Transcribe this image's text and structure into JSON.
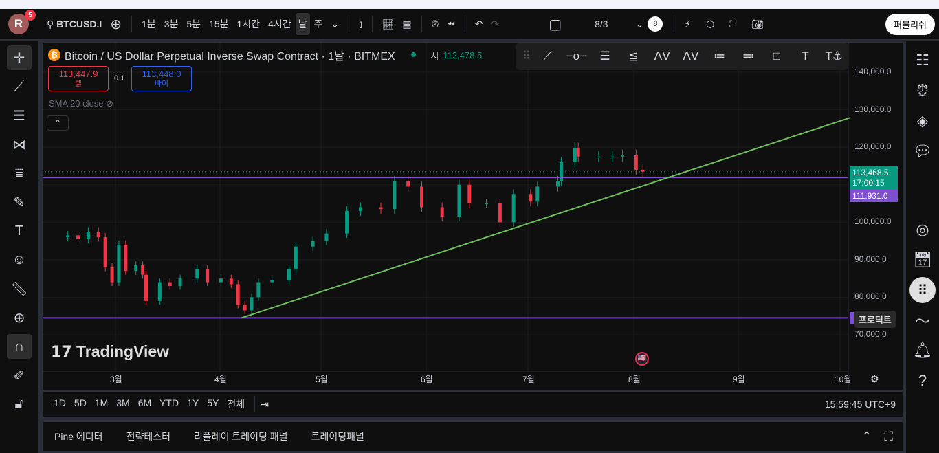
{
  "topbar": {
    "avatar": "R",
    "notifications": "5",
    "symbol": "BTCUSD.I",
    "intervals": [
      "1분",
      "3분",
      "5분",
      "15분",
      "1시간",
      "4시간",
      "날",
      "주"
    ],
    "active_interval": "날",
    "layout": "8/3",
    "layout_count": "8",
    "publish": "퍼블리쉬"
  },
  "legend": {
    "title": "Bitcoin / US Dollar Perpetual Inverse Swap Contract · 1날 · BITMEX",
    "open_label": "시",
    "open_value": "112,478.5",
    "sell_price": "113,447.9",
    "sell_label": "셀",
    "spread": "0.1",
    "buy_price": "113,448.0",
    "buy_label": "바이",
    "indicator": "SMA 20 close"
  },
  "price_axis": {
    "ticks": [
      "140,000.0",
      "130,000.0",
      "120,000.0",
      "100,000.0",
      "90,000.0",
      "80,000.0",
      "70,000.0"
    ],
    "last_price": "113,468.5",
    "countdown": "17:00:15",
    "line_price": "111,931.0",
    "tooltip": "프로덕트"
  },
  "time_axis": {
    "ticks": [
      "3월",
      "4월",
      "5월",
      "6월",
      "7월",
      "8월",
      "9월",
      "10월"
    ]
  },
  "watermark": "TradingView",
  "ranges": [
    "1D",
    "5D",
    "1M",
    "3M",
    "6M",
    "YTD",
    "1Y",
    "5Y",
    "전체"
  ],
  "clock": "15:59:45 UTC+9",
  "bottom_tabs": [
    "Pine 에디터",
    "전략테스터",
    "리플레이 트레이딩 패널",
    "트레이딩패널"
  ],
  "colors": {
    "up": "#089981",
    "down": "#f23645",
    "hline": "#7e4fd0",
    "trend": "#6fbf5a",
    "last": "#089981"
  },
  "chart_data": {
    "type": "candlestick",
    "ylim": [
      60000,
      145000
    ],
    "closes": [
      [
        "02-15",
        96500
      ],
      [
        "02-18",
        95500
      ],
      [
        "02-21",
        97500
      ],
      [
        "02-24",
        96000
      ],
      [
        "02-26",
        88000
      ],
      [
        "02-28",
        84000
      ],
      [
        "03-02",
        94000
      ],
      [
        "03-04",
        87000
      ],
      [
        "03-07",
        88500
      ],
      [
        "03-09",
        86000
      ],
      [
        "03-10",
        79000
      ],
      [
        "03-14",
        84000
      ],
      [
        "03-17",
        83000
      ],
      [
        "03-20",
        85000
      ],
      [
        "03-25",
        87500
      ],
      [
        "03-28",
        84000
      ],
      [
        "04-01",
        85000
      ],
      [
        "04-04",
        83500
      ],
      [
        "04-06",
        78000
      ],
      [
        "04-08",
        76500
      ],
      [
        "04-10",
        80000
      ],
      [
        "04-12",
        84000
      ],
      [
        "04-16",
        84500
      ],
      [
        "04-21",
        87500
      ],
      [
        "04-23",
        93500
      ],
      [
        "04-28",
        95000
      ],
      [
        "05-02",
        97000
      ],
      [
        "05-08",
        103000
      ],
      [
        "05-12",
        104000
      ],
      [
        "05-18",
        103500
      ],
      [
        "05-22",
        111000
      ],
      [
        "05-26",
        109500
      ],
      [
        "05-30",
        104000
      ],
      [
        "06-05",
        101500
      ],
      [
        "06-10",
        110000
      ],
      [
        "06-13",
        105000
      ],
      [
        "06-18",
        105000
      ],
      [
        "06-22",
        100000
      ],
      [
        "06-26",
        107500
      ],
      [
        "07-01",
        105500
      ],
      [
        "07-03",
        109500
      ],
      [
        "07-09",
        111000
      ],
      [
        "07-10",
        116000
      ],
      [
        "07-14",
        119800
      ],
      [
        "07-15",
        117500
      ],
      [
        "07-21",
        117500
      ],
      [
        "07-25",
        117500
      ],
      [
        "07-28",
        118000
      ],
      [
        "08-01",
        114000
      ],
      [
        "08-03",
        113468.5
      ]
    ],
    "hlines": [
      111931,
      74500
    ],
    "trendline": [
      [
        "04-07",
        74500
      ],
      [
        "10-03",
        127900
      ]
    ]
  }
}
